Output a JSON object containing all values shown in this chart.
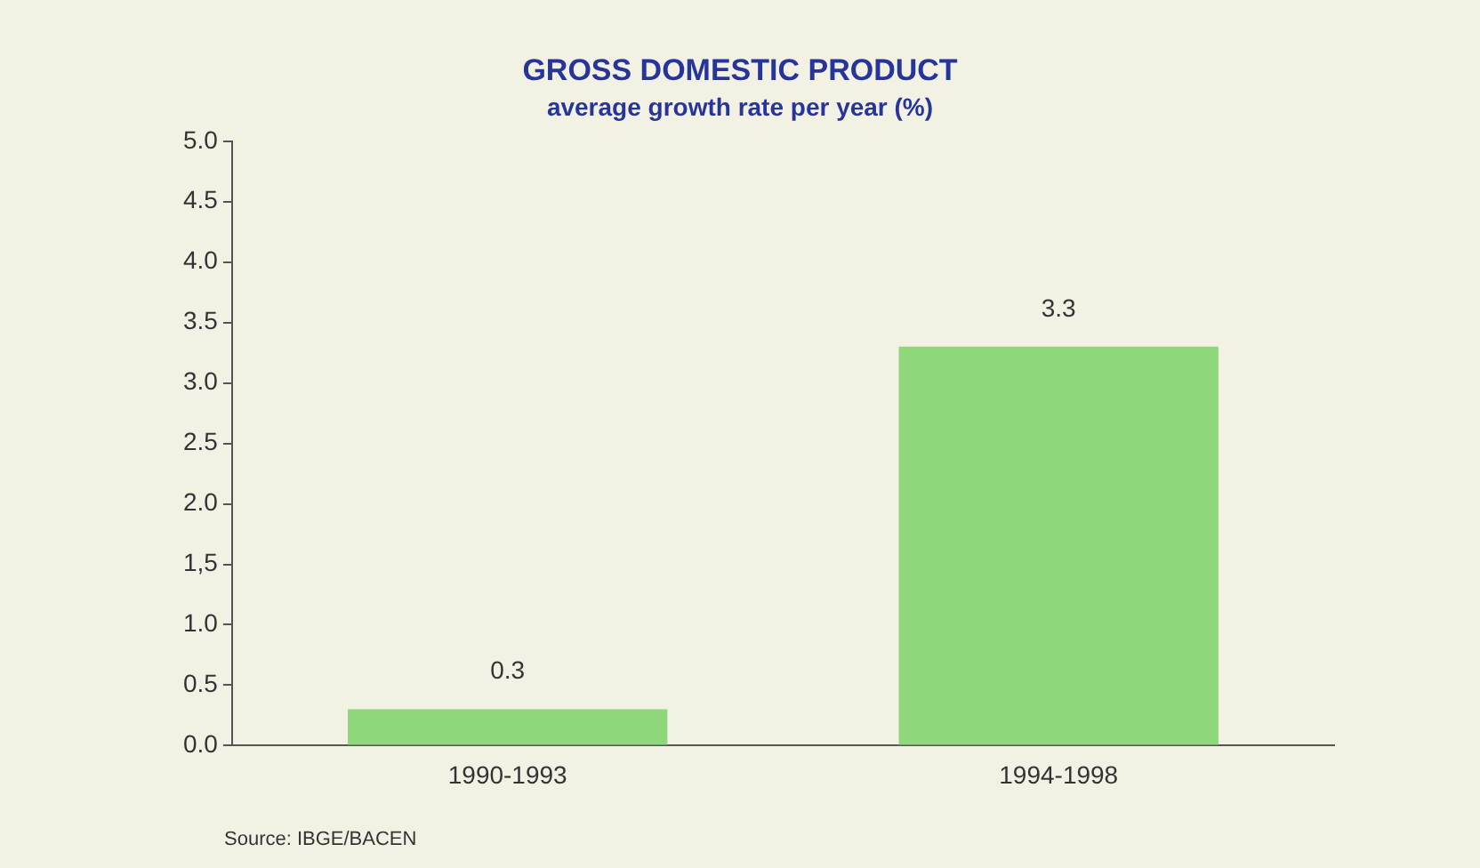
{
  "chart_data": {
    "type": "bar",
    "title": "GROSS DOMESTIC PRODUCT",
    "subtitle": "average growth rate per year  (%)",
    "categories": [
      "1990-1993",
      "1994-1998"
    ],
    "values": [
      0.3,
      3.3
    ],
    "color": "#8ed77a",
    "ylim": [
      0,
      5
    ],
    "yticks": [
      {
        "value": 0,
        "label": "0.0"
      },
      {
        "value": 0.5,
        "label": "0.5"
      },
      {
        "value": 1,
        "label": "1.0"
      },
      {
        "value": 1.5,
        "label": "1,5"
      },
      {
        "value": 2,
        "label": "2.0"
      },
      {
        "value": 2.5,
        "label": "2.5"
      },
      {
        "value": 3,
        "label": "3.0"
      },
      {
        "value": 3.5,
        "label": "3.5"
      },
      {
        "value": 4,
        "label": "4.0"
      },
      {
        "value": 4.5,
        "label": "4.5"
      },
      {
        "value": 5,
        "label": "5.0"
      }
    ],
    "data_labels": true,
    "grid": false,
    "legend": false,
    "annotations": [
      "Source: IBGE/BACEN"
    ]
  }
}
